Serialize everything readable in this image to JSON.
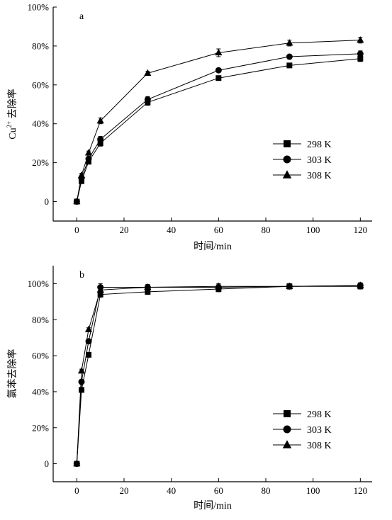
{
  "chart_data": [
    {
      "panel_label": "a",
      "type": "line",
      "xlabel": "时间/min",
      "ylabel": "Cu2+ 去除率",
      "ylabel_parts": {
        "base": "Cu",
        "sup": "2+",
        "rest": " 去除率"
      },
      "xlim": [
        -10,
        125
      ],
      "ylim": [
        -10,
        100
      ],
      "xticks": [
        0,
        20,
        40,
        60,
        80,
        100,
        120
      ],
      "xtick_labels": [
        "0",
        "20",
        "40",
        "60",
        "80",
        "100",
        "120"
      ],
      "yticks": [
        0,
        20,
        40,
        60,
        80,
        100
      ],
      "ytick_labels": [
        "0",
        "20%",
        "40%",
        "60%",
        "80%",
        "100%"
      ],
      "legend_position": "right-center",
      "grid": false,
      "x": [
        0,
        2,
        5,
        10,
        30,
        60,
        90,
        120
      ],
      "series": [
        {
          "name": "298 K",
          "marker": "square",
          "values": [
            0,
            10.5,
            20.5,
            30,
            51,
            63.5,
            70,
            73.5
          ],
          "errors": [
            0,
            1,
            1,
            1.5,
            1.5,
            1,
            1,
            1.5
          ]
        },
        {
          "name": "303 K",
          "marker": "circle",
          "values": [
            0,
            12,
            22,
            32,
            52.5,
            67.5,
            74.5,
            76
          ],
          "errors": [
            0,
            1,
            1,
            1.5,
            1.5,
            1,
            1,
            1.5
          ]
        },
        {
          "name": "308 K",
          "marker": "triangle",
          "values": [
            0,
            13.5,
            25,
            41.5,
            66,
            76.5,
            81.5,
            83
          ],
          "errors": [
            0,
            1,
            1,
            1.5,
            1,
            2,
            1.5,
            1.5
          ]
        }
      ]
    },
    {
      "panel_label": "b",
      "type": "line",
      "xlabel": "时间/min",
      "ylabel": "氯苯去除率",
      "xlim": [
        -10,
        125
      ],
      "ylim": [
        -10,
        110
      ],
      "xticks": [
        0,
        20,
        40,
        60,
        80,
        100,
        120
      ],
      "xtick_labels": [
        "0",
        "20",
        "40",
        "60",
        "80",
        "100",
        "120"
      ],
      "yticks": [
        0,
        20,
        40,
        60,
        80,
        100
      ],
      "ytick_labels": [
        "0",
        "20%",
        "40%",
        "60%",
        "80%",
        "100%"
      ],
      "legend_position": "right-bottom",
      "grid": false,
      "x": [
        0,
        2,
        5,
        10,
        30,
        60,
        90,
        120
      ],
      "series": [
        {
          "name": "298 K",
          "marker": "square",
          "values": [
            0,
            41,
            60.5,
            94,
            95.5,
            97,
            98.5,
            98.5
          ],
          "errors": [
            0,
            1,
            1,
            1.5,
            1.5,
            1.5,
            1.5,
            1.5
          ]
        },
        {
          "name": "303 K",
          "marker": "circle",
          "values": [
            0,
            45.5,
            68,
            98,
            98,
            98,
            98.5,
            99
          ],
          "errors": [
            0,
            1,
            1,
            2,
            1.5,
            1.5,
            1.5,
            1.5
          ]
        },
        {
          "name": "308 K",
          "marker": "triangle",
          "values": [
            0,
            51.5,
            74.5,
            96.5,
            98,
            98.5,
            98.5,
            99
          ],
          "errors": [
            0,
            1,
            1,
            2,
            1.5,
            1.5,
            1.5,
            1.5
          ]
        }
      ]
    }
  ]
}
